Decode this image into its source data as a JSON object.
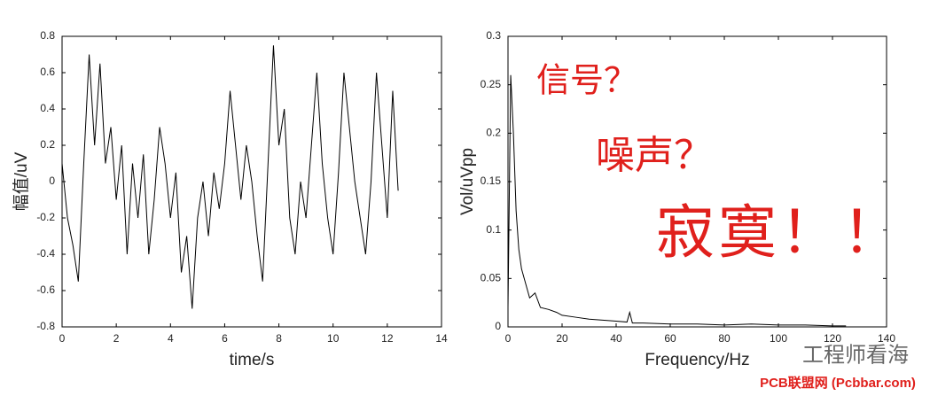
{
  "chart_data": [
    {
      "type": "line",
      "xlabel": "time/s",
      "ylabel": "幅值/uV",
      "color": "#000000",
      "xlim": [
        0,
        14
      ],
      "xticks": [
        0,
        2,
        4,
        6,
        8,
        10,
        12,
        14
      ],
      "ylim": [
        -0.8,
        0.8
      ],
      "yticks": [
        -0.8,
        -0.6,
        -0.4,
        -0.2,
        0,
        0.2,
        0.4,
        0.6,
        0.8
      ],
      "x": [
        0,
        0.2,
        0.4,
        0.6,
        0.8,
        1.0,
        1.2,
        1.4,
        1.6,
        1.8,
        2.0,
        2.2,
        2.4,
        2.6,
        2.8,
        3.0,
        3.2,
        3.4,
        3.6,
        3.8,
        4.0,
        4.2,
        4.4,
        4.6,
        4.8,
        5.0,
        5.2,
        5.4,
        5.6,
        5.8,
        6.0,
        6.2,
        6.4,
        6.6,
        6.8,
        7.0,
        7.2,
        7.4,
        7.6,
        7.8,
        8.0,
        8.2,
        8.4,
        8.6,
        8.8,
        9.0,
        9.2,
        9.4,
        9.6,
        9.8,
        10.0,
        10.2,
        10.4,
        10.6,
        10.8,
        11.0,
        11.2,
        11.4,
        11.6,
        11.8,
        12.0,
        12.2,
        12.4
      ],
      "values": [
        0.1,
        -0.2,
        -0.35,
        -0.55,
        0.1,
        0.7,
        0.2,
        0.65,
        0.1,
        0.3,
        -0.1,
        0.2,
        -0.4,
        0.1,
        -0.2,
        0.15,
        -0.4,
        -0.1,
        0.3,
        0.1,
        -0.2,
        0.05,
        -0.5,
        -0.3,
        -0.7,
        -0.2,
        0.0,
        -0.3,
        0.05,
        -0.15,
        0.1,
        0.5,
        0.2,
        -0.1,
        0.2,
        0.0,
        -0.3,
        -0.55,
        0.1,
        0.75,
        0.2,
        0.4,
        -0.2,
        -0.4,
        0.0,
        -0.2,
        0.2,
        0.6,
        0.1,
        -0.2,
        -0.4,
        0.05,
        0.6,
        0.3,
        0.0,
        -0.2,
        -0.4,
        0.0,
        0.6,
        0.2,
        -0.2,
        0.5,
        -0.05
      ]
    },
    {
      "type": "line",
      "xlabel": "Frequency/Hz",
      "ylabel": "Vol/uVpp",
      "color": "#000000",
      "xlim": [
        0,
        140
      ],
      "xticks": [
        0,
        20,
        40,
        60,
        80,
        100,
        120,
        140
      ],
      "ylim": [
        0,
        0.3
      ],
      "yticks": [
        0,
        0.05,
        0.1,
        0.15,
        0.2,
        0.25,
        0.3
      ],
      "x": [
        0,
        1,
        2,
        3,
        4,
        5,
        6,
        8,
        10,
        12,
        15,
        18,
        20,
        25,
        30,
        35,
        40,
        44,
        45,
        46,
        50,
        60,
        70,
        80,
        90,
        100,
        110,
        120,
        125
      ],
      "values": [
        0.02,
        0.26,
        0.2,
        0.12,
        0.08,
        0.06,
        0.05,
        0.03,
        0.035,
        0.02,
        0.018,
        0.015,
        0.012,
        0.01,
        0.008,
        0.007,
        0.006,
        0.005,
        0.015,
        0.004,
        0.004,
        0.003,
        0.003,
        0.002,
        0.003,
        0.002,
        0.002,
        0.001,
        0.001
      ],
      "annotations": [
        "信号？",
        "噪声？",
        "寂寞！！"
      ]
    }
  ],
  "watermark": {
    "account": "工程师看海",
    "site": "PCB联盟网 (Pcbbar.com)"
  }
}
